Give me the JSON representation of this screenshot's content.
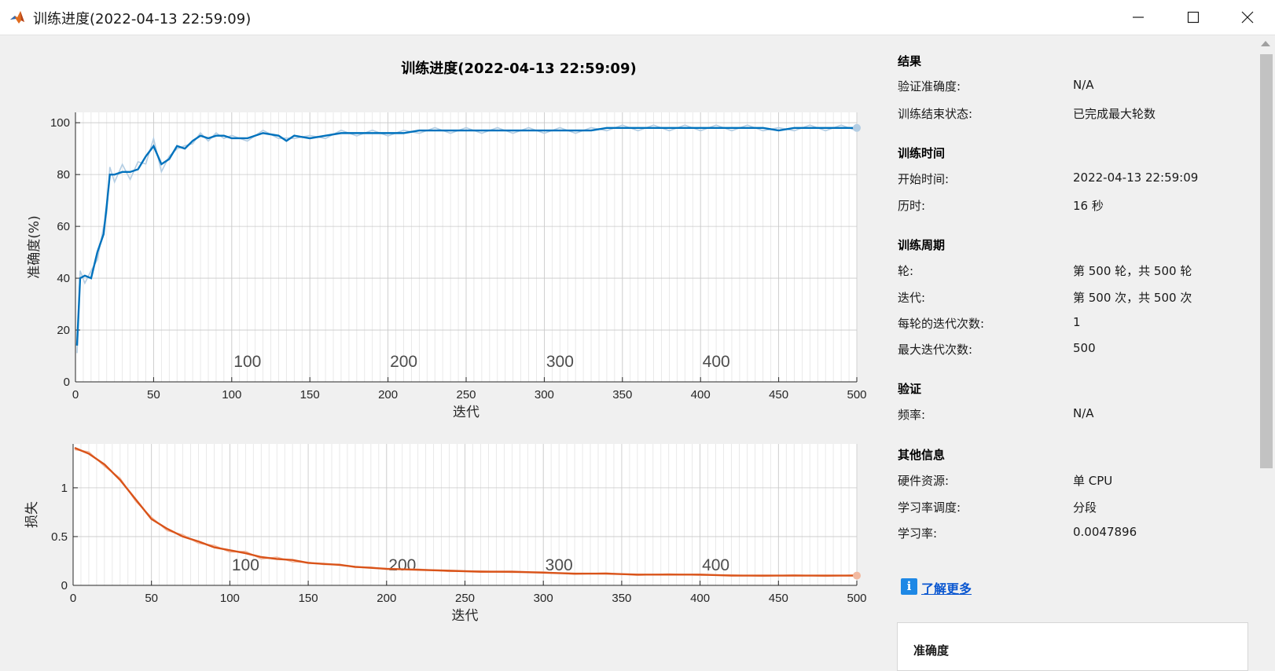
{
  "window": {
    "title": "训练进度(2022-04-13 22:59:09)",
    "icons": {
      "app": "matlab-logo-icon",
      "minimize": "minimize-icon",
      "maximize": "maximize-icon",
      "close": "close-icon"
    }
  },
  "plot_title": "训练进度(2022-04-13 22:59:09)",
  "chart_data": [
    {
      "type": "line",
      "xlabel": "迭代",
      "ylabel": "准确度(%)",
      "xlim": [
        0,
        500
      ],
      "ylim": [
        0,
        104
      ],
      "xticks": [
        0,
        50,
        100,
        150,
        200,
        250,
        300,
        350,
        400,
        450,
        500
      ],
      "yticks": [
        0,
        20,
        40,
        60,
        80,
        100
      ],
      "epoch_labels": [
        "100",
        "200",
        "300",
        "400"
      ],
      "epoch_label_x": [
        100,
        200,
        300,
        400
      ],
      "grid": true,
      "color_smoothed": "#0072bd",
      "color_raw": "#b3cde3",
      "series": [
        {
          "x": [
            1,
            3,
            6,
            10,
            14,
            18,
            20,
            22,
            25,
            30,
            35,
            40,
            45,
            50,
            55,
            60,
            65,
            70,
            75,
            80,
            85,
            90,
            95,
            100,
            110,
            120,
            130,
            135,
            140,
            150,
            160,
            170,
            180,
            190,
            200,
            210,
            220,
            230,
            240,
            250,
            260,
            270,
            280,
            290,
            300,
            310,
            320,
            330,
            340,
            350,
            360,
            370,
            380,
            390,
            400,
            410,
            420,
            430,
            440,
            450,
            460,
            470,
            480,
            490,
            500
          ],
          "values": [
            14,
            40,
            41,
            40,
            50,
            57,
            68,
            80,
            80,
            81,
            81,
            82,
            87,
            91,
            84,
            86,
            91,
            90,
            93,
            95,
            94,
            95,
            95,
            94,
            94,
            96,
            95,
            93,
            95,
            94,
            95,
            96,
            96,
            96,
            96,
            96,
            97,
            97,
            97,
            97,
            97,
            97,
            97,
            97,
            97,
            97,
            97,
            97,
            98,
            98,
            98,
            98,
            98,
            98,
            98,
            98,
            98,
            98,
            98,
            97,
            98,
            98,
            98,
            98,
            98
          ]
        }
      ]
    },
    {
      "type": "line",
      "xlabel": "迭代",
      "ylabel": "损失",
      "xlim": [
        0,
        500
      ],
      "ylim": [
        0,
        1.45
      ],
      "xticks": [
        0,
        50,
        100,
        150,
        200,
        250,
        300,
        350,
        400,
        450,
        500
      ],
      "yticks": [
        0,
        0.5,
        1
      ],
      "ytick_labels": [
        "0",
        "0.5",
        "1"
      ],
      "epoch_labels": [
        "100",
        "200",
        "300",
        "400"
      ],
      "epoch_label_x": [
        100,
        200,
        300,
        400
      ],
      "grid": true,
      "color_smoothed": "#d95319",
      "color_raw": "#f2b9a0",
      "series": [
        {
          "x": [
            1,
            10,
            20,
            30,
            40,
            50,
            60,
            70,
            80,
            90,
            100,
            110,
            120,
            130,
            140,
            150,
            160,
            170,
            180,
            190,
            200,
            220,
            240,
            260,
            280,
            300,
            320,
            340,
            360,
            380,
            400,
            420,
            440,
            460,
            480,
            500
          ],
          "values": [
            1.41,
            1.35,
            1.24,
            1.08,
            0.88,
            0.68,
            0.58,
            0.5,
            0.45,
            0.39,
            0.36,
            0.33,
            0.29,
            0.27,
            0.26,
            0.23,
            0.22,
            0.21,
            0.19,
            0.18,
            0.17,
            0.16,
            0.15,
            0.14,
            0.14,
            0.13,
            0.12,
            0.12,
            0.11,
            0.11,
            0.11,
            0.1,
            0.1,
            0.1,
            0.1,
            0.1
          ]
        }
      ]
    }
  ],
  "sections": [
    {
      "title": "结果",
      "rows": [
        {
          "label": "验证准确度:",
          "value": "N/A"
        },
        {
          "label": "训练结束状态:",
          "value": "已完成最大轮数"
        }
      ]
    },
    {
      "title": "训练时间",
      "rows": [
        {
          "label": "开始时间:",
          "value": "2022-04-13 22:59:09"
        },
        {
          "label": "历时:",
          "value": "16 秒"
        }
      ]
    },
    {
      "title": "训练周期",
      "rows": [
        {
          "label": "轮:",
          "value": "第 500 轮，共 500 轮"
        },
        {
          "label": "迭代:",
          "value": "第 500 次，共 500 次"
        },
        {
          "label": "每轮的迭代次数:",
          "value": "1"
        },
        {
          "label": "最大迭代次数:",
          "value": "500"
        }
      ]
    },
    {
      "title": "验证",
      "rows": [
        {
          "label": "频率:",
          "value": "N/A"
        }
      ]
    },
    {
      "title": "其他信息",
      "rows": [
        {
          "label": "硬件资源:",
          "value": "单 CPU"
        },
        {
          "label": "学习率调度:",
          "value": "分段"
        },
        {
          "label": "学习率:",
          "value": "0.0047896"
        }
      ]
    }
  ],
  "learn_more": {
    "icon": "info-icon",
    "icon_glyph": "i",
    "label": "了解更多"
  },
  "legend_panel": {
    "title": "准确度"
  }
}
